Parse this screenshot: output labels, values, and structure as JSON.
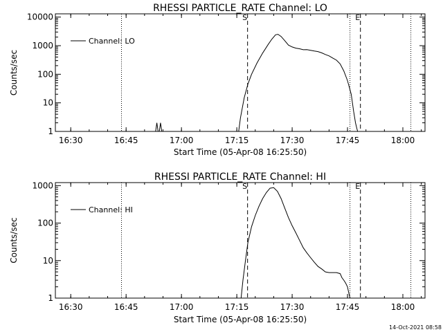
{
  "chart_data": [
    {
      "type": "line",
      "title": "RHESSI PARTICLE_RATE Channel: LO",
      "xlabel": "Start Time (05-Apr-08 16:25:50)",
      "ylabel": "Counts/sec",
      "y_scale": "log",
      "ylim": [
        1,
        13000
      ],
      "xlim": [
        "16:25:50",
        "18:06:00"
      ],
      "x_ticks": [
        "16:30",
        "16:45",
        "17:00",
        "17:15",
        "17:30",
        "17:45",
        "18:00"
      ],
      "y_ticks": [
        "1",
        "10",
        "100",
        "1000",
        "10000"
      ],
      "legend": {
        "entries": [
          "Channel: LO"
        ],
        "position": "top-left"
      },
      "grid": false,
      "event_markers": [
        {
          "label": "S",
          "time": "17:17:55",
          "style": "dashed"
        },
        {
          "label": "E",
          "time": "17:48:30",
          "style": "dashed"
        }
      ],
      "dotted_markers": [
        "16:43:45",
        "17:45:40",
        "18:02:10"
      ],
      "series": [
        {
          "name": "Channel: LO",
          "x": [
            "16:53:00",
            "16:53:20",
            "16:53:40",
            "16:54:00",
            "16:54:20",
            "16:54:40",
            "16:55:00",
            "17:15:30",
            "17:16:00",
            "17:17:00",
            "17:18:00",
            "17:19:00",
            "17:20:30",
            "17:22:00",
            "17:23:30",
            "17:24:30",
            "17:25:30",
            "17:26:10",
            "17:27:00",
            "17:28:00",
            "17:29:00",
            "17:30:00",
            "17:31:00",
            "17:32:00",
            "17:33:00",
            "17:34:00",
            "17:35:00",
            "17:36:00",
            "17:37:00",
            "17:38:00",
            "17:39:00",
            "17:40:00",
            "17:41:00",
            "17:42:00",
            "17:43:00",
            "17:44:00",
            "17:45:00",
            "17:46:00",
            "17:46:40",
            "17:47:10",
            "17:47:30",
            "17:47:45"
          ],
          "y": [
            1,
            2,
            1,
            1,
            2,
            1,
            1,
            1,
            3,
            15,
            45,
            100,
            250,
            550,
            1100,
            1700,
            2400,
            2500,
            2100,
            1500,
            1050,
            900,
            820,
            780,
            720,
            730,
            690,
            650,
            620,
            560,
            490,
            440,
            370,
            310,
            230,
            130,
            60,
            20,
            5,
            2,
            1.3,
            1
          ]
        }
      ]
    },
    {
      "type": "line",
      "title": "RHESSI PARTICLE_RATE Channel: HI",
      "xlabel": "Start Time (05-Apr-08 16:25:50)",
      "ylabel": "Counts/sec",
      "y_scale": "log",
      "ylim": [
        1,
        1200
      ],
      "xlim": [
        "16:25:50",
        "18:06:00"
      ],
      "x_ticks": [
        "16:30",
        "16:45",
        "17:00",
        "17:15",
        "17:30",
        "17:45",
        "18:00"
      ],
      "y_ticks": [
        "1",
        "10",
        "100",
        "1000"
      ],
      "legend": {
        "entries": [
          "Channel: HI"
        ],
        "position": "top-left"
      },
      "grid": false,
      "event_markers": [
        {
          "label": "S",
          "time": "17:17:55",
          "style": "dashed"
        },
        {
          "label": "E",
          "time": "17:48:30",
          "style": "dashed"
        }
      ],
      "dotted_markers": [
        "16:43:45",
        "17:45:40",
        "18:02:10"
      ],
      "series": [
        {
          "name": "Channel: HI",
          "x": [
            "17:16:10",
            "17:16:40",
            "17:17:20",
            "17:18:00",
            "17:19:00",
            "17:20:00",
            "17:21:00",
            "17:22:00",
            "17:23:00",
            "17:24:00",
            "17:25:00",
            "17:26:00",
            "17:27:00",
            "17:28:00",
            "17:29:00",
            "17:30:00",
            "17:31:00",
            "17:32:00",
            "17:33:00",
            "17:34:00",
            "17:35:00",
            "17:36:00",
            "17:37:00",
            "17:38:00",
            "17:39:00",
            "17:40:00",
            "17:41:00",
            "17:42:00",
            "17:43:00",
            "17:43:30",
            "17:44:00",
            "17:44:30",
            "17:45:00",
            "17:45:20",
            "17:45:40"
          ],
          "y": [
            1,
            3,
            10,
            30,
            80,
            160,
            280,
            450,
            650,
            850,
            880,
            700,
            450,
            250,
            140,
            85,
            55,
            35,
            22,
            16,
            12,
            9,
            7,
            6,
            5,
            4.8,
            4.8,
            4.8,
            4.5,
            3.5,
            3,
            2.5,
            2,
            1.4,
            1
          ]
        }
      ]
    }
  ],
  "timestamp": "14-Oct-2021 08:58",
  "style": {
    "line_color": "#000000",
    "background": "#ffffff"
  }
}
